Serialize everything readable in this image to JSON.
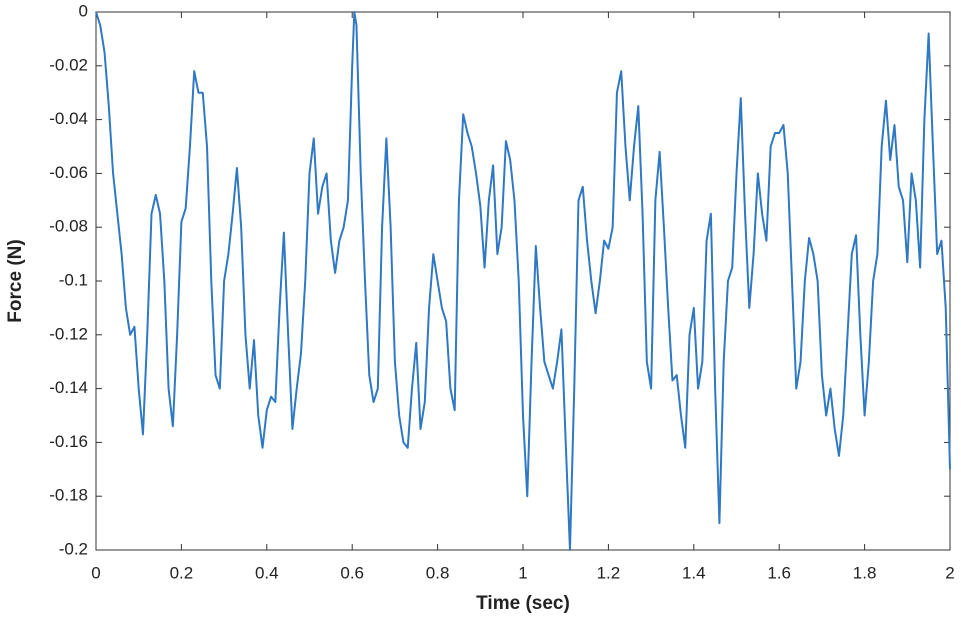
{
  "chart_data": {
    "type": "line",
    "xlabel": "Time (sec)",
    "ylabel": "Force (N)",
    "x": [
      0,
      0.01,
      0.02,
      0.03,
      0.04,
      0.05,
      0.06,
      0.07,
      0.08,
      0.09,
      0.1,
      0.11,
      0.12,
      0.13,
      0.14,
      0.15,
      0.16,
      0.17,
      0.18,
      0.19,
      0.2,
      0.21,
      0.22,
      0.23,
      0.24,
      0.25,
      0.26,
      0.27,
      0.28,
      0.29,
      0.3,
      0.31,
      0.32,
      0.33,
      0.34,
      0.35,
      0.36,
      0.37,
      0.38,
      0.39,
      0.4,
      0.41,
      0.42,
      0.43,
      0.44,
      0.45,
      0.46,
      0.47,
      0.48,
      0.49,
      0.5,
      0.51,
      0.52,
      0.53,
      0.54,
      0.55,
      0.56,
      0.57,
      0.58,
      0.59,
      0.6,
      0.605,
      0.61,
      0.62,
      0.63,
      0.64,
      0.65,
      0.66,
      0.67,
      0.68,
      0.69,
      0.7,
      0.71,
      0.72,
      0.73,
      0.74,
      0.75,
      0.76,
      0.77,
      0.78,
      0.79,
      0.8,
      0.81,
      0.82,
      0.83,
      0.84,
      0.85,
      0.86,
      0.87,
      0.88,
      0.89,
      0.9,
      0.91,
      0.92,
      0.93,
      0.94,
      0.95,
      0.96,
      0.97,
      0.98,
      0.99,
      1,
      1.01,
      1.02,
      1.03,
      1.04,
      1.05,
      1.06,
      1.07,
      1.08,
      1.09,
      1.1,
      1.11,
      1.12,
      1.13,
      1.14,
      1.15,
      1.16,
      1.17,
      1.18,
      1.19,
      1.2,
      1.21,
      1.22,
      1.23,
      1.24,
      1.25,
      1.26,
      1.27,
      1.28,
      1.29,
      1.3,
      1.31,
      1.32,
      1.33,
      1.34,
      1.35,
      1.36,
      1.37,
      1.38,
      1.39,
      1.4,
      1.41,
      1.42,
      1.43,
      1.44,
      1.45,
      1.46,
      1.47,
      1.48,
      1.49,
      1.5,
      1.51,
      1.52,
      1.53,
      1.54,
      1.55,
      1.56,
      1.57,
      1.58,
      1.59,
      1.6,
      1.61,
      1.62,
      1.63,
      1.64,
      1.65,
      1.66,
      1.67,
      1.68,
      1.69,
      1.7,
      1.71,
      1.72,
      1.73,
      1.74,
      1.75,
      1.76,
      1.77,
      1.78,
      1.79,
      1.8,
      1.81,
      1.82,
      1.83,
      1.84,
      1.85,
      1.86,
      1.87,
      1.88,
      1.89,
      1.9,
      1.91,
      1.92,
      1.93,
      1.94,
      1.95,
      1.96,
      1.97,
      1.98,
      1.99,
      2
    ],
    "series": [
      {
        "name": "Force",
        "color": "#2f78c4",
        "values": [
          0,
          -0.005,
          -0.015,
          -0.035,
          -0.06,
          -0.075,
          -0.09,
          -0.11,
          -0.12,
          -0.117,
          -0.14,
          -0.157,
          -0.12,
          -0.075,
          -0.068,
          -0.075,
          -0.1,
          -0.14,
          -0.154,
          -0.12,
          -0.078,
          -0.073,
          -0.05,
          -0.022,
          -0.03,
          -0.03,
          -0.05,
          -0.1,
          -0.135,
          -0.14,
          -0.1,
          -0.09,
          -0.075,
          -0.058,
          -0.08,
          -0.12,
          -0.14,
          -0.122,
          -0.15,
          -0.162,
          -0.148,
          -0.143,
          -0.145,
          -0.11,
          -0.082,
          -0.12,
          -0.155,
          -0.14,
          -0.127,
          -0.1,
          -0.06,
          -0.047,
          -0.075,
          -0.065,
          -0.06,
          -0.085,
          -0.097,
          -0.085,
          -0.08,
          -0.07,
          -0.02,
          0,
          -0.005,
          -0.06,
          -0.1,
          -0.135,
          -0.145,
          -0.14,
          -0.08,
          -0.047,
          -0.08,
          -0.13,
          -0.15,
          -0.16,
          -0.162,
          -0.14,
          -0.123,
          -0.155,
          -0.145,
          -0.11,
          -0.09,
          -0.1,
          -0.11,
          -0.115,
          -0.14,
          -0.148,
          -0.07,
          -0.038,
          -0.045,
          -0.05,
          -0.06,
          -0.072,
          -0.095,
          -0.07,
          -0.057,
          -0.09,
          -0.08,
          -0.048,
          -0.055,
          -0.07,
          -0.1,
          -0.15,
          -0.18,
          -0.13,
          -0.087,
          -0.11,
          -0.13,
          -0.135,
          -0.14,
          -0.13,
          -0.118,
          -0.16,
          -0.2,
          -0.14,
          -0.07,
          -0.065,
          -0.085,
          -0.1,
          -0.112,
          -0.1,
          -0.085,
          -0.088,
          -0.08,
          -0.03,
          -0.022,
          -0.05,
          -0.07,
          -0.05,
          -0.035,
          -0.075,
          -0.13,
          -0.14,
          -0.07,
          -0.052,
          -0.08,
          -0.11,
          -0.137,
          -0.135,
          -0.15,
          -0.162,
          -0.12,
          -0.11,
          -0.14,
          -0.13,
          -0.085,
          -0.075,
          -0.14,
          -0.19,
          -0.13,
          -0.1,
          -0.095,
          -0.06,
          -0.032,
          -0.075,
          -0.11,
          -0.09,
          -0.06,
          -0.075,
          -0.085,
          -0.05,
          -0.045,
          -0.045,
          -0.042,
          -0.06,
          -0.1,
          -0.14,
          -0.13,
          -0.1,
          -0.084,
          -0.09,
          -0.1,
          -0.135,
          -0.15,
          -0.14,
          -0.155,
          -0.165,
          -0.15,
          -0.12,
          -0.09,
          -0.083,
          -0.12,
          -0.15,
          -0.13,
          -0.1,
          -0.09,
          -0.05,
          -0.033,
          -0.055,
          -0.042,
          -0.065,
          -0.07,
          -0.093,
          -0.06,
          -0.07,
          -0.095,
          -0.04,
          -0.008,
          -0.05,
          -0.09,
          -0.085,
          -0.11,
          -0.17
        ]
      }
    ],
    "xlim": [
      0,
      2
    ],
    "xticks": [
      0,
      0.2,
      0.4,
      0.6,
      0.8,
      1,
      1.2,
      1.4,
      1.6,
      1.8,
      2
    ],
    "ylim": [
      -0.2,
      0
    ],
    "yticks": [
      0,
      -0.02,
      -0.04,
      -0.06,
      -0.08,
      -0.1,
      -0.12,
      -0.14,
      -0.16,
      -0.18,
      -0.2
    ],
    "grid": false
  }
}
